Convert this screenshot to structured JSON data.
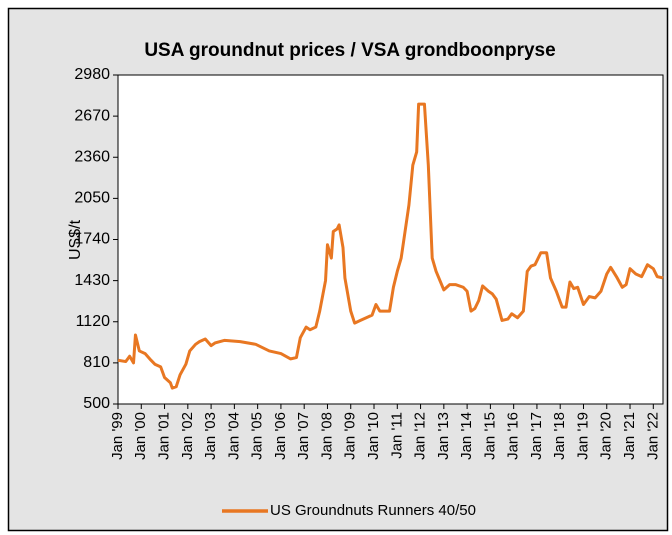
{
  "chart_data": {
    "type": "line",
    "title": "USA groundnut prices /  VSA grondboonpryse",
    "y_label": "US$/t",
    "legend": "bottom",
    "grid": false,
    "x": [
      "1999-01",
      "1999-05",
      "1999-07",
      "1999-09",
      "1999-10",
      "1999-12",
      "2000-03",
      "2000-06",
      "2000-08",
      "2000-11",
      "2001-01",
      "2001-04",
      "2001-05",
      "2001-07",
      "2001-09",
      "2001-12",
      "2002-02",
      "2002-05",
      "2002-07",
      "2002-10",
      "2003-01",
      "2003-03",
      "2003-08",
      "2004-04",
      "2004-12",
      "2005-07",
      "2006-01",
      "2006-06",
      "2006-09",
      "2006-11",
      "2007-02",
      "2007-04",
      "2007-07",
      "2007-09",
      "2007-12",
      "2008-01",
      "2008-03",
      "2008-04",
      "2008-06",
      "2008-07",
      "2008-09",
      "2008-10",
      "2009-01",
      "2009-03",
      "2009-06",
      "2009-09",
      "2009-12",
      "2010-02",
      "2010-04",
      "2010-09",
      "2010-11",
      "2011-01",
      "2011-03",
      "2011-05",
      "2011-07",
      "2011-09",
      "2011-11",
      "2011-12",
      "2012-03",
      "2012-05",
      "2012-07",
      "2012-09",
      "2013-01",
      "2013-04",
      "2013-07",
      "2013-11",
      "2014-01",
      "2014-03",
      "2014-05",
      "2014-07",
      "2014-09",
      "2014-12",
      "2015-02",
      "2015-04",
      "2015-07",
      "2015-10",
      "2015-12",
      "2016-03",
      "2016-06",
      "2016-08",
      "2016-10",
      "2016-12",
      "2017-03",
      "2017-06",
      "2017-08",
      "2017-11",
      "2018-02",
      "2018-04",
      "2018-06",
      "2018-08",
      "2018-10",
      "2019-01",
      "2019-04",
      "2019-07",
      "2019-10",
      "2020-01",
      "2020-03",
      "2020-06",
      "2020-09",
      "2020-11",
      "2021-01",
      "2021-04",
      "2021-07",
      "2021-10",
      "2022-01",
      "2022-03",
      "2022-06"
    ],
    "series": [
      {
        "name": "US Groundnuts Runners 40/50",
        "color": "#e87722",
        "values": [
          830,
          820,
          860,
          810,
          1020,
          900,
          880,
          830,
          800,
          780,
          700,
          660,
          620,
          630,
          720,
          800,
          900,
          950,
          970,
          990,
          940,
          960,
          980,
          970,
          950,
          900,
          880,
          840,
          850,
          1000,
          1080,
          1060,
          1080,
          1200,
          1430,
          1700,
          1600,
          1800,
          1820,
          1850,
          1680,
          1450,
          1200,
          1110,
          1130,
          1150,
          1170,
          1250,
          1200,
          1200,
          1380,
          1500,
          1600,
          1800,
          2000,
          2300,
          2400,
          2760,
          2760,
          2300,
          1600,
          1500,
          1360,
          1400,
          1400,
          1380,
          1350,
          1200,
          1220,
          1280,
          1390,
          1350,
          1330,
          1290,
          1130,
          1140,
          1180,
          1150,
          1200,
          1500,
          1540,
          1550,
          1640,
          1640,
          1450,
          1350,
          1230,
          1230,
          1420,
          1370,
          1380,
          1250,
          1310,
          1300,
          1350,
          1480,
          1530,
          1460,
          1380,
          1400,
          1520,
          1480,
          1460,
          1550,
          1520,
          1460,
          1450
        ]
      }
    ],
    "xlim": [
      "1999-01",
      "2022-06"
    ],
    "xticks": [
      {
        "value": "1999-01",
        "label": "Jan '99"
      },
      {
        "value": "2000-01",
        "label": "Jan '00"
      },
      {
        "value": "2001-01",
        "label": "Jan '01"
      },
      {
        "value": "2002-01",
        "label": "Jan '02"
      },
      {
        "value": "2003-01",
        "label": "Jan '03"
      },
      {
        "value": "2004-01",
        "label": "Jan '04"
      },
      {
        "value": "2005-01",
        "label": "Jan '05"
      },
      {
        "value": "2006-01",
        "label": "Jan '06"
      },
      {
        "value": "2007-01",
        "label": "Jan '07"
      },
      {
        "value": "2008-01",
        "label": "Jan '08"
      },
      {
        "value": "2009-01",
        "label": "Jan '09"
      },
      {
        "value": "2010-01",
        "label": "Jan '10"
      },
      {
        "value": "2011-01",
        "label": "Jan '11"
      },
      {
        "value": "2012-01",
        "label": "Jan '12"
      },
      {
        "value": "2013-01",
        "label": "Jan '13"
      },
      {
        "value": "2014-01",
        "label": "Jan '14"
      },
      {
        "value": "2015-01",
        "label": "Jan '15"
      },
      {
        "value": "2016-01",
        "label": "Jan '16"
      },
      {
        "value": "2017-01",
        "label": "Jan '17"
      },
      {
        "value": "2018-01",
        "label": "Jan '18"
      },
      {
        "value": "2019-01",
        "label": "Jan '19"
      },
      {
        "value": "2020-01",
        "label": "Jan '20"
      },
      {
        "value": "2021-01",
        "label": "Jan '21"
      },
      {
        "value": "2022-01",
        "label": "Jan '22"
      }
    ],
    "ylim": [
      500,
      2980
    ],
    "yticks": [
      500,
      810,
      1120,
      1430,
      1740,
      2050,
      2360,
      2670,
      2980
    ]
  }
}
